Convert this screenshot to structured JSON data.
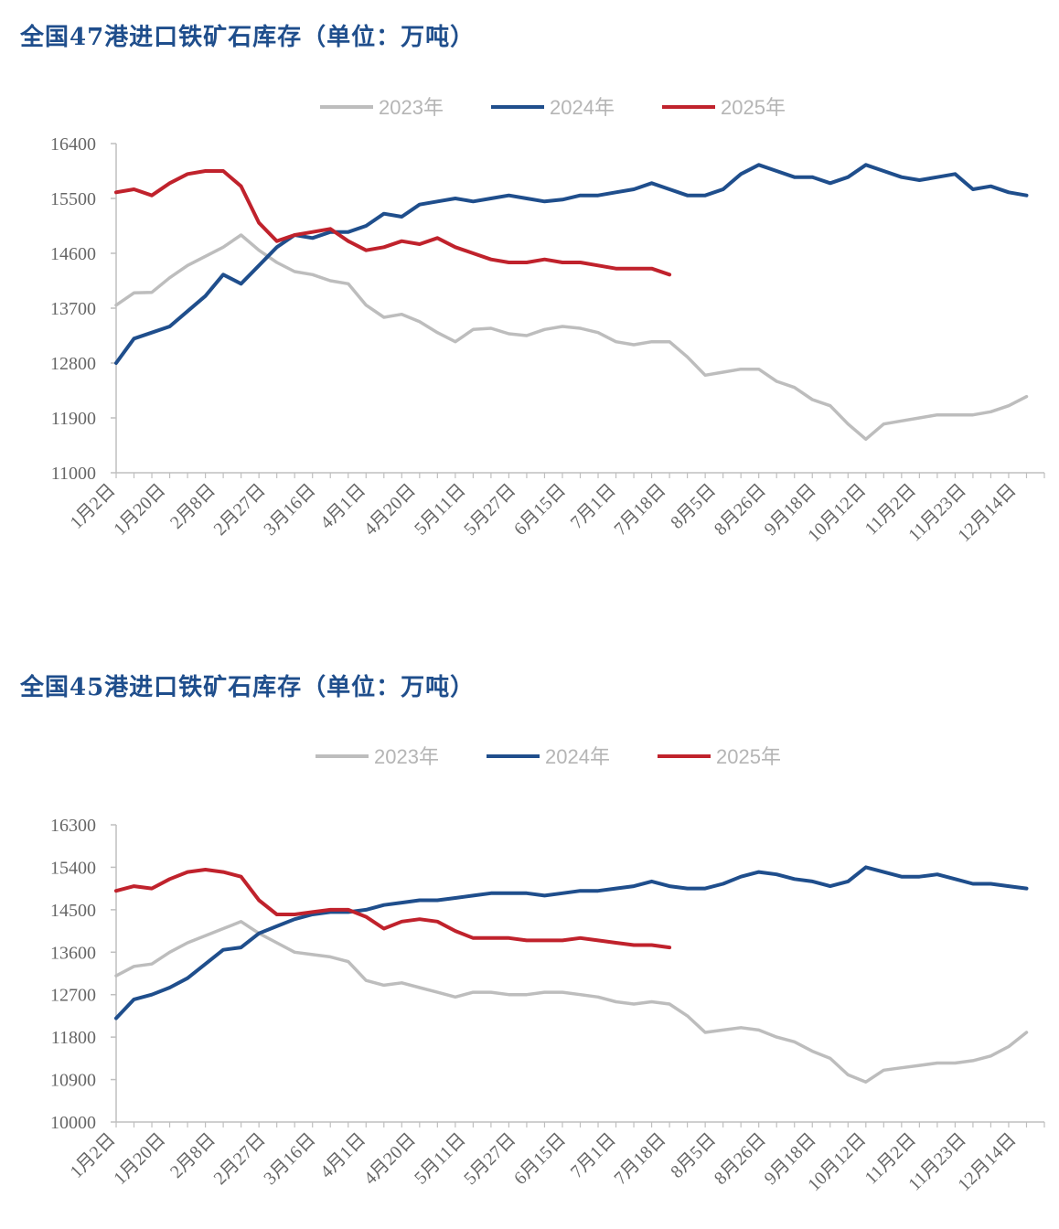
{
  "colors": {
    "2023": "#bdbdbd",
    "2024": "#1f4e8c",
    "2025": "#c0222c",
    "axis": "#bfbfbf",
    "title": "#1f4e8c"
  },
  "chart_data": [
    {
      "type": "line",
      "title": "全国47港进口铁矿石库存（单位：万吨）",
      "ylim": [
        11000,
        16400
      ],
      "yticks": [
        11000,
        11900,
        12800,
        13700,
        14600,
        15500,
        16400
      ],
      "x_labels": [
        "1月2日",
        "1月20日",
        "2月8日",
        "2月27日",
        "3月16日",
        "4月1日",
        "4月20日",
        "5月11日",
        "5月27日",
        "6月15日",
        "7月1日",
        "7月18日",
        "8月5日",
        "8月26日",
        "9月18日",
        "10月12日",
        "11月2日",
        "11月23日",
        "12月14日"
      ],
      "x_range": [
        0,
        52
      ],
      "grid": false,
      "legend_position": "top",
      "series": [
        {
          "name": "2023年",
          "x": [
            0,
            1,
            2,
            3,
            4,
            5,
            6,
            7,
            8,
            9,
            10,
            11,
            12,
            13,
            14,
            15,
            16,
            17,
            18,
            19,
            20,
            21,
            22,
            23,
            24,
            25,
            26,
            27,
            28,
            29,
            30,
            31,
            32,
            33,
            34,
            35,
            36,
            37,
            38,
            39,
            40,
            41,
            42,
            43,
            44,
            45,
            46,
            47,
            48,
            49,
            50,
            51
          ],
          "values": [
            13750,
            13950,
            13960,
            14200,
            14400,
            14550,
            14700,
            14900,
            14650,
            14450,
            14300,
            14250,
            14150,
            14100,
            13750,
            13550,
            13600,
            13480,
            13300,
            13150,
            13350,
            13370,
            13280,
            13250,
            13350,
            13400,
            13370,
            13300,
            13150,
            13100,
            13150,
            13150,
            12900,
            12600,
            12650,
            12700,
            12700,
            12500,
            12400,
            12200,
            12100,
            11800,
            11550,
            11800,
            11850,
            11900,
            11950,
            11950,
            11950,
            12000,
            12100,
            12250
          ]
        },
        {
          "name": "2024年",
          "x": [
            0,
            1,
            2,
            3,
            4,
            5,
            6,
            7,
            8,
            9,
            10,
            11,
            12,
            13,
            14,
            15,
            16,
            17,
            18,
            19,
            20,
            21,
            22,
            23,
            24,
            25,
            26,
            27,
            28,
            29,
            30,
            31,
            32,
            33,
            34,
            35,
            36,
            37,
            38,
            39,
            40,
            41,
            42,
            43,
            44,
            45,
            46,
            47,
            48,
            49,
            50,
            51
          ],
          "values": [
            12800,
            13200,
            13300,
            13400,
            13650,
            13900,
            14250,
            14100,
            14400,
            14700,
            14900,
            14850,
            14950,
            14950,
            15050,
            15250,
            15200,
            15400,
            15450,
            15500,
            15450,
            15500,
            15550,
            15500,
            15450,
            15480,
            15550,
            15550,
            15600,
            15650,
            15750,
            15650,
            15550,
            15550,
            15650,
            15900,
            16050,
            15950,
            15850,
            15850,
            15750,
            15850,
            16050,
            15950,
            15850,
            15800,
            15850,
            15900,
            15650,
            15700,
            15600,
            15550
          ]
        },
        {
          "name": "2025年",
          "x": [
            0,
            1,
            2,
            3,
            4,
            5,
            6,
            7,
            8,
            9,
            10,
            11,
            12,
            13,
            14,
            15,
            16,
            17,
            18,
            19,
            20,
            21,
            22,
            23,
            24,
            25,
            26,
            27,
            28,
            29,
            30,
            31
          ],
          "values": [
            15600,
            15650,
            15550,
            15750,
            15900,
            15950,
            15950,
            15700,
            15100,
            14800,
            14900,
            14950,
            15000,
            14800,
            14650,
            14700,
            14800,
            14750,
            14850,
            14700,
            14600,
            14500,
            14450,
            14450,
            14500,
            14450,
            14450,
            14400,
            14350,
            14350,
            14350,
            14250
          ]
        }
      ]
    },
    {
      "type": "line",
      "title": "全国45港进口铁矿石库存（单位：万吨）",
      "ylim": [
        10000,
        16300
      ],
      "yticks": [
        10000,
        10900,
        11800,
        12700,
        13600,
        14500,
        15400,
        16300
      ],
      "x_labels": [
        "1月2日",
        "1月20日",
        "2月8日",
        "2月27日",
        "3月16日",
        "4月1日",
        "4月20日",
        "5月11日",
        "5月27日",
        "6月15日",
        "7月1日",
        "7月18日",
        "8月5日",
        "8月26日",
        "9月18日",
        "10月12日",
        "11月2日",
        "11月23日",
        "12月14日"
      ],
      "x_range": [
        0,
        52
      ],
      "grid": false,
      "legend_position": "top",
      "series": [
        {
          "name": "2023年",
          "x": [
            0,
            1,
            2,
            3,
            4,
            5,
            6,
            7,
            8,
            9,
            10,
            11,
            12,
            13,
            14,
            15,
            16,
            17,
            18,
            19,
            20,
            21,
            22,
            23,
            24,
            25,
            26,
            27,
            28,
            29,
            30,
            31,
            32,
            33,
            34,
            35,
            36,
            37,
            38,
            39,
            40,
            41,
            42,
            43,
            44,
            45,
            46,
            47,
            48,
            49,
            50,
            51
          ],
          "values": [
            13100,
            13300,
            13350,
            13600,
            13800,
            13950,
            14100,
            14250,
            14000,
            13800,
            13600,
            13550,
            13500,
            13400,
            13000,
            12900,
            12950,
            12850,
            12750,
            12650,
            12750,
            12750,
            12700,
            12700,
            12750,
            12750,
            12700,
            12650,
            12550,
            12500,
            12550,
            12500,
            12250,
            11900,
            11950,
            12000,
            11950,
            11800,
            11700,
            11500,
            11350,
            11000,
            10850,
            11100,
            11150,
            11200,
            11250,
            11250,
            11300,
            11400,
            11600,
            11900
          ]
        },
        {
          "name": "2024年",
          "x": [
            0,
            1,
            2,
            3,
            4,
            5,
            6,
            7,
            8,
            9,
            10,
            11,
            12,
            13,
            14,
            15,
            16,
            17,
            18,
            19,
            20,
            21,
            22,
            23,
            24,
            25,
            26,
            27,
            28,
            29,
            30,
            31,
            32,
            33,
            34,
            35,
            36,
            37,
            38,
            39,
            40,
            41,
            42,
            43,
            44,
            45,
            46,
            47,
            48,
            49,
            50,
            51
          ],
          "values": [
            12200,
            12600,
            12700,
            12850,
            13050,
            13350,
            13650,
            13700,
            14000,
            14150,
            14300,
            14400,
            14450,
            14450,
            14500,
            14600,
            14650,
            14700,
            14700,
            14750,
            14800,
            14850,
            14850,
            14850,
            14800,
            14850,
            14900,
            14900,
            14950,
            15000,
            15100,
            15000,
            14950,
            14950,
            15050,
            15200,
            15300,
            15250,
            15150,
            15100,
            15000,
            15100,
            15400,
            15300,
            15200,
            15200,
            15250,
            15150,
            15050,
            15050,
            15000,
            14950
          ]
        },
        {
          "name": "2025年",
          "x": [
            0,
            1,
            2,
            3,
            4,
            5,
            6,
            7,
            8,
            9,
            10,
            11,
            12,
            13,
            14,
            15,
            16,
            17,
            18,
            19,
            20,
            21,
            22,
            23,
            24,
            25,
            26,
            27,
            28,
            29,
            30,
            31
          ],
          "values": [
            14900,
            15000,
            14950,
            15150,
            15300,
            15350,
            15300,
            15200,
            14700,
            14400,
            14400,
            14450,
            14500,
            14500,
            14350,
            14100,
            14250,
            14300,
            14250,
            14050,
            13900,
            13900,
            13900,
            13850,
            13850,
            13850,
            13900,
            13850,
            13800,
            13750,
            13750,
            13700
          ]
        }
      ]
    }
  ]
}
